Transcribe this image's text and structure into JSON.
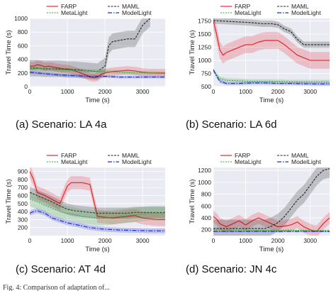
{
  "colors": {
    "FARP": "#e8262a",
    "MAML": "#222222",
    "MetaLight": "#3aa33a",
    "ModelLight": "#1a2fd6",
    "plot_bg": "#eaeaf2",
    "grid": "#ffffff"
  },
  "legend_order": [
    "FARP",
    "MAML",
    "MetaLight",
    "ModelLight"
  ],
  "footer_text": "Fig. 4:  Comparison of adaptation of...",
  "chart_data": [
    {
      "type": "line",
      "caption": "(a) Scenario: LA 4a",
      "xlabel": "Time (s)",
      "ylabel": "Travel Time (s)",
      "xlim": [
        0,
        3600
      ],
      "ylim": [
        0,
        1000
      ],
      "xticks": [
        0,
        1000,
        2000,
        3000
      ],
      "yticks": [
        0,
        200,
        400,
        600,
        800,
        1000
      ],
      "grid": true,
      "legend": "top",
      "series": [
        {
          "name": "FARP",
          "x": [
            0,
            100,
            200,
            300,
            400,
            500,
            600,
            700,
            800,
            900,
            1000,
            1100,
            1200,
            1300,
            1400,
            1500,
            1600,
            1700,
            1800,
            1900,
            2000,
            2200,
            2400,
            2600,
            2800,
            3000,
            3200,
            3400,
            3600
          ],
          "y": [
            300,
            300,
            320,
            310,
            290,
            300,
            290,
            280,
            270,
            260,
            260,
            250,
            230,
            210,
            190,
            170,
            140,
            130,
            140,
            180,
            200,
            220,
            230,
            240,
            230,
            210,
            200,
            200,
            200
          ],
          "band": 60
        },
        {
          "name": "MAML",
          "x": [
            0,
            200,
            400,
            600,
            800,
            1000,
            1200,
            1400,
            1600,
            1800,
            2000,
            2100,
            2200,
            2400,
            2600,
            2800,
            2900,
            3000,
            3100,
            3200
          ],
          "y": [
            270,
            270,
            260,
            260,
            260,
            250,
            250,
            240,
            230,
            220,
            300,
            600,
            660,
            680,
            700,
            700,
            800,
            900,
            950,
            1000
          ],
          "band": 120
        },
        {
          "name": "MetaLight",
          "x": [
            0,
            400,
            800,
            1200,
            1600,
            2000,
            2400,
            2800,
            3200,
            3600
          ],
          "y": [
            270,
            260,
            250,
            240,
            230,
            220,
            210,
            200,
            200,
            190
          ],
          "band": 30
        },
        {
          "name": "ModelLight",
          "x": [
            0,
            400,
            800,
            1200,
            1600,
            2000,
            2400,
            2800,
            3200,
            3600
          ],
          "y": [
            210,
            190,
            170,
            160,
            150,
            150,
            140,
            140,
            140,
            140
          ],
          "band": 20
        }
      ]
    },
    {
      "type": "line",
      "caption": "(b) Scenario: LA 6d",
      "xlabel": "Time (s)",
      "ylabel": "Travel Time (s)",
      "xlim": [
        0,
        3600
      ],
      "ylim": [
        500,
        1800
      ],
      "xticks": [
        0,
        1000,
        2000,
        3000
      ],
      "yticks": [
        500,
        750,
        1000,
        1250,
        1500,
        1750
      ],
      "grid": true,
      "legend": "top",
      "series": [
        {
          "name": "FARP",
          "x": [
            0,
            100,
            200,
            300,
            400,
            600,
            800,
            1000,
            1200,
            1400,
            1600,
            1800,
            2000,
            2200,
            2400,
            2600,
            2800,
            3000,
            3200,
            3400,
            3600
          ],
          "y": [
            1750,
            1500,
            1200,
            1100,
            1150,
            1200,
            1250,
            1300,
            1300,
            1350,
            1380,
            1380,
            1380,
            1300,
            1200,
            1100,
            1050,
            1000,
            1000,
            1000,
            1000
          ],
          "band": 160
        },
        {
          "name": "MAML",
          "x": [
            0,
            300,
            600,
            900,
            1200,
            1500,
            1800,
            2000,
            2200,
            2400,
            2600,
            2800,
            3000,
            3200,
            3400,
            3600
          ],
          "y": [
            1760,
            1750,
            1740,
            1730,
            1720,
            1700,
            1700,
            1680,
            1600,
            1550,
            1400,
            1300,
            1300,
            1300,
            1300,
            1300
          ],
          "band": 60
        },
        {
          "name": "MetaLight",
          "x": [
            0,
            200,
            400,
            800,
            1200,
            1600,
            2000,
            2400,
            2800,
            3200,
            3600
          ],
          "y": [
            800,
            650,
            620,
            610,
            600,
            600,
            600,
            590,
            590,
            590,
            590
          ],
          "band": 40
        },
        {
          "name": "ModelLight",
          "x": [
            0,
            100,
            200,
            400,
            800,
            1200,
            1600,
            2000,
            2400,
            2800,
            3200,
            3600
          ],
          "y": [
            820,
            700,
            600,
            560,
            560,
            570,
            570,
            560,
            560,
            555,
            550,
            550
          ],
          "band": 30
        }
      ]
    },
    {
      "type": "line",
      "caption": "(c) Scenario: AT 4d",
      "xlabel": "Time (s)",
      "ylabel": "Travel Time (s)",
      "xlim": [
        0,
        3600
      ],
      "ylim": [
        100,
        950
      ],
      "xticks": [
        0,
        1000,
        2000,
        3000
      ],
      "yticks": [
        200,
        300,
        400,
        500,
        600,
        700,
        800,
        900
      ],
      "grid": true,
      "legend": "top",
      "series": [
        {
          "name": "FARP",
          "x": [
            0,
            100,
            200,
            400,
            600,
            800,
            1000,
            1100,
            1200,
            1400,
            1600,
            1800,
            2000,
            2200,
            2400,
            2600,
            2800,
            3000,
            3200,
            3400,
            3600
          ],
          "y": [
            900,
            800,
            640,
            600,
            550,
            500,
            720,
            760,
            760,
            760,
            740,
            340,
            330,
            320,
            330,
            340,
            350,
            320,
            310,
            300,
            300
          ],
          "band": 80
        },
        {
          "name": "MAML",
          "x": [
            0,
            200,
            400,
            600,
            800,
            1000,
            1200,
            1400,
            1600,
            1800,
            2000,
            2200,
            2400,
            2600,
            2800,
            3000,
            3200,
            3400,
            3600
          ],
          "y": [
            640,
            600,
            560,
            520,
            470,
            430,
            410,
            400,
            390,
            380,
            380,
            380,
            380,
            380,
            390,
            390,
            390,
            390,
            390
          ],
          "band": 70
        },
        {
          "name": "MetaLight",
          "x": [
            0,
            200,
            400,
            600,
            800,
            1000,
            1200,
            1400,
            1600,
            1800,
            2000,
            2200,
            2400,
            2600,
            2800,
            3000,
            3200,
            3400,
            3600
          ],
          "y": [
            560,
            520,
            480,
            440,
            400,
            380,
            360,
            340,
            330,
            320,
            320,
            330,
            340,
            350,
            360,
            370,
            380,
            380,
            380
          ],
          "band": 90
        },
        {
          "name": "ModelLight",
          "x": [
            0,
            100,
            200,
            400,
            600,
            800,
            1000,
            1200,
            1400,
            1600,
            1800,
            2000,
            2400,
            2800,
            3200,
            3600
          ],
          "y": [
            380,
            400,
            410,
            380,
            320,
            290,
            260,
            240,
            220,
            200,
            190,
            180,
            170,
            165,
            160,
            160
          ],
          "band": 30
        }
      ]
    },
    {
      "type": "line",
      "caption": "(d) Scenario: JN 4c",
      "xlabel": "Time (s)",
      "ylabel": "Travel Time (s)",
      "xlim": [
        0,
        3600
      ],
      "ylim": [
        100,
        1250
      ],
      "xticks": [
        0,
        1000,
        2000,
        3000
      ],
      "yticks": [
        200,
        400,
        600,
        800,
        1000,
        1200
      ],
      "grid": true,
      "legend": "top",
      "series": [
        {
          "name": "FARP",
          "x": [
            0,
            100,
            200,
            400,
            600,
            800,
            1000,
            1200,
            1400,
            1600,
            1800,
            2000,
            2200,
            2400,
            2600,
            2800,
            3000,
            3100,
            3200,
            3400,
            3600
          ],
          "y": [
            420,
            380,
            300,
            250,
            300,
            350,
            280,
            350,
            400,
            350,
            300,
            250,
            260,
            280,
            330,
            250,
            200,
            180,
            170,
            300,
            400
          ],
          "band": 100
        },
        {
          "name": "MAML",
          "x": [
            0,
            400,
            800,
            1200,
            1600,
            1800,
            2000,
            2200,
            2400,
            2600,
            2800,
            3000,
            3200,
            3400,
            3600
          ],
          "y": [
            220,
            220,
            220,
            220,
            220,
            260,
            320,
            420,
            560,
            700,
            800,
            950,
            1100,
            1200,
            1230
          ],
          "band": 150
        },
        {
          "name": "MetaLight",
          "x": [
            0,
            400,
            800,
            1200,
            1600,
            2000,
            2400,
            2800,
            3200,
            3600
          ],
          "y": [
            200,
            195,
            195,
            190,
            190,
            190,
            190,
            190,
            185,
            185
          ],
          "band": 20
        },
        {
          "name": "ModelLight",
          "x": [
            0,
            400,
            800,
            1200,
            1600,
            2000,
            2400,
            2800,
            3200,
            3600
          ],
          "y": [
            170,
            170,
            170,
            170,
            170,
            170,
            170,
            170,
            170,
            170
          ],
          "band": 10
        }
      ]
    }
  ]
}
